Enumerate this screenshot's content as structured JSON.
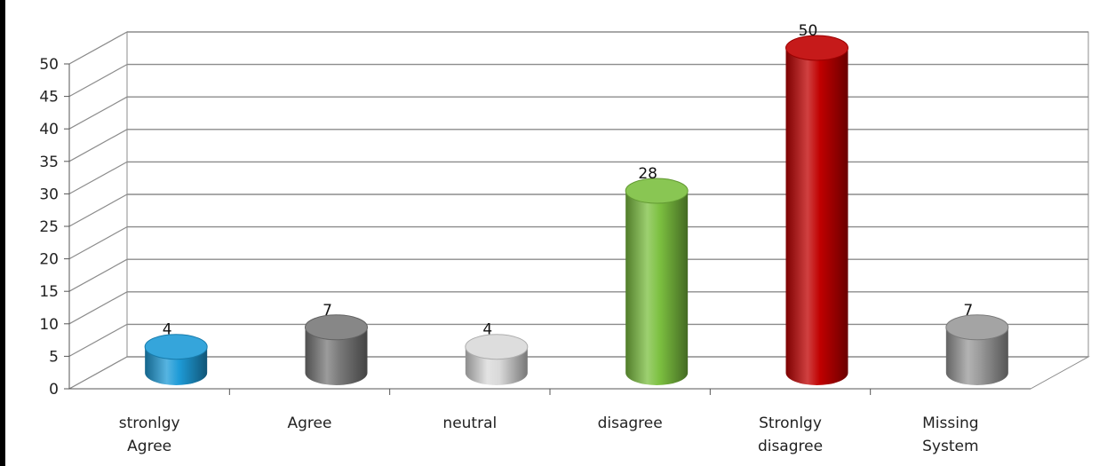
{
  "chart_data": {
    "type": "bar",
    "categories": [
      [
        "stronlgy",
        "Agree"
      ],
      [
        "Agree"
      ],
      [
        "neutral"
      ],
      [
        "disagree"
      ],
      [
        "Stronlgy",
        "disagree"
      ],
      [
        "Missing",
        "System"
      ]
    ],
    "values": [
      4,
      7,
      4,
      28,
      50,
      7
    ],
    "colors": [
      "#1e9bd7",
      "#7a7a7a",
      "#d9d9d9",
      "#7cc040",
      "#c00000",
      "#9a9a9a"
    ],
    "ylim": [
      0,
      50
    ],
    "yticks": [
      0,
      5,
      10,
      15,
      20,
      25,
      30,
      35,
      40,
      45,
      50
    ],
    "grid": true,
    "style": "3d-cylinder"
  }
}
